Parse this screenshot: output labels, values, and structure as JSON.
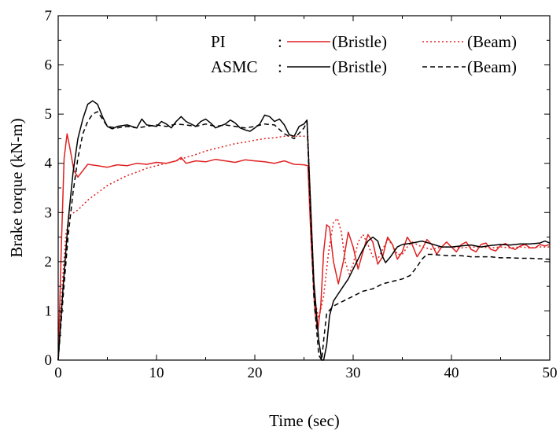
{
  "chart_data": {
    "type": "line",
    "title": "",
    "xlabel": "Time (sec)",
    "ylabel": "Brake torque (kN-m)",
    "xlim": [
      0,
      50
    ],
    "ylim": [
      0,
      7
    ],
    "xticks": [
      "0",
      "10",
      "20",
      "30",
      "40",
      "50"
    ],
    "yticks": [
      "0",
      "1",
      "2",
      "3",
      "4",
      "5",
      "6",
      "7"
    ],
    "grid": false,
    "legend": {
      "placement": "top-right",
      "rows": [
        {
          "label": "PI",
          "colon": ":",
          "entries": [
            "(Bristle)",
            "(Beam)"
          ]
        },
        {
          "label": "ASMC",
          "colon": ":",
          "entries": [
            "(Bristle)",
            "(Beam)"
          ]
        }
      ]
    },
    "series": [
      {
        "color": "#e02020",
        "dash": "solid",
        "points": [
          [
            0,
            0
          ],
          [
            0.3,
            2.2
          ],
          [
            0.6,
            4.1
          ],
          [
            0.9,
            4.6
          ],
          [
            1.2,
            4.3
          ],
          [
            1.6,
            3.85
          ],
          [
            2,
            3.72
          ],
          [
            2.5,
            3.85
          ],
          [
            3,
            3.98
          ],
          [
            4,
            3.95
          ],
          [
            5,
            3.92
          ],
          [
            6,
            3.97
          ],
          [
            7,
            3.95
          ],
          [
            8,
            4.0
          ],
          [
            9,
            3.98
          ],
          [
            10,
            4.02
          ],
          [
            11,
            4.0
          ],
          [
            12,
            4.05
          ],
          [
            12.5,
            4.12
          ],
          [
            13,
            4.0
          ],
          [
            14,
            4.05
          ],
          [
            15,
            4.03
          ],
          [
            16,
            4.08
          ],
          [
            17,
            4.05
          ],
          [
            18,
            4.02
          ],
          [
            19,
            4.07
          ],
          [
            20,
            4.05
          ],
          [
            21,
            4.03
          ],
          [
            22,
            4.0
          ],
          [
            23,
            4.05
          ],
          [
            24,
            3.98
          ],
          [
            25,
            3.97
          ],
          [
            25.4,
            3.95
          ],
          [
            25.7,
            2.5
          ],
          [
            26.1,
            1.0
          ],
          [
            26.4,
            0.6
          ],
          [
            26.7,
            1.1
          ],
          [
            27,
            2.2
          ],
          [
            27.3,
            2.75
          ],
          [
            27.6,
            2.7
          ],
          [
            28,
            2.0
          ],
          [
            28.5,
            1.55
          ],
          [
            29,
            2.0
          ],
          [
            29.5,
            2.6
          ],
          [
            30,
            2.3
          ],
          [
            30.5,
            1.85
          ],
          [
            31,
            2.2
          ],
          [
            31.5,
            2.55
          ],
          [
            32,
            2.4
          ],
          [
            32.5,
            1.95
          ],
          [
            33,
            2.1
          ],
          [
            33.5,
            2.5
          ],
          [
            34,
            2.35
          ],
          [
            34.5,
            2.05
          ],
          [
            35,
            2.2
          ],
          [
            35.5,
            2.5
          ],
          [
            36,
            2.35
          ],
          [
            36.5,
            2.1
          ],
          [
            37,
            2.25
          ],
          [
            37.5,
            2.45
          ],
          [
            38,
            2.35
          ],
          [
            38.5,
            2.15
          ],
          [
            39,
            2.3
          ],
          [
            39.5,
            2.4
          ],
          [
            40,
            2.3
          ],
          [
            40.5,
            2.2
          ],
          [
            41,
            2.35
          ],
          [
            41.5,
            2.4
          ],
          [
            42,
            2.25
          ],
          [
            42.5,
            2.2
          ],
          [
            43,
            2.35
          ],
          [
            43.5,
            2.38
          ],
          [
            44,
            2.25
          ],
          [
            44.5,
            2.22
          ],
          [
            45,
            2.33
          ],
          [
            45.5,
            2.37
          ],
          [
            46,
            2.28
          ],
          [
            46.5,
            2.25
          ],
          [
            47,
            2.32
          ],
          [
            47.5,
            2.35
          ],
          [
            48,
            2.28
          ],
          [
            48.5,
            2.28
          ],
          [
            49,
            2.35
          ],
          [
            49.5,
            2.32
          ],
          [
            50,
            2.35
          ]
        ]
      },
      {
        "color": "#e02020",
        "dash": "dotted",
        "points": [
          [
            0,
            0
          ],
          [
            0.4,
            1.5
          ],
          [
            0.8,
            2.6
          ],
          [
            1.2,
            2.95
          ],
          [
            2,
            3.05
          ],
          [
            3,
            3.25
          ],
          [
            4,
            3.4
          ],
          [
            5,
            3.55
          ],
          [
            6,
            3.65
          ],
          [
            7,
            3.75
          ],
          [
            8,
            3.82
          ],
          [
            9,
            3.9
          ],
          [
            10,
            3.95
          ],
          [
            11,
            4.0
          ],
          [
            12,
            4.05
          ],
          [
            13,
            4.12
          ],
          [
            14,
            4.18
          ],
          [
            15,
            4.25
          ],
          [
            16,
            4.3
          ],
          [
            17,
            4.35
          ],
          [
            18,
            4.4
          ],
          [
            19,
            4.43
          ],
          [
            20,
            4.47
          ],
          [
            21,
            4.5
          ],
          [
            22,
            4.52
          ],
          [
            23,
            4.55
          ],
          [
            24,
            4.55
          ],
          [
            25,
            4.55
          ],
          [
            25.4,
            4.55
          ],
          [
            25.7,
            3.0
          ],
          [
            26.1,
            1.2
          ],
          [
            26.5,
            0.85
          ],
          [
            27,
            1.3
          ],
          [
            27.5,
            2.2
          ],
          [
            28,
            2.8
          ],
          [
            28.4,
            2.88
          ],
          [
            28.8,
            2.6
          ],
          [
            29.2,
            2.0
          ],
          [
            29.6,
            1.75
          ],
          [
            30,
            1.95
          ],
          [
            30.5,
            2.4
          ],
          [
            31,
            2.55
          ],
          [
            31.5,
            2.35
          ],
          [
            32,
            2.1
          ],
          [
            32.5,
            2.05
          ],
          [
            33,
            2.25
          ],
          [
            33.5,
            2.45
          ],
          [
            34,
            2.35
          ],
          [
            34.5,
            2.15
          ],
          [
            35,
            2.15
          ],
          [
            35.5,
            2.3
          ],
          [
            36,
            2.4
          ],
          [
            37,
            2.3
          ],
          [
            38,
            2.25
          ],
          [
            39,
            2.3
          ],
          [
            40,
            2.3
          ],
          [
            41,
            2.28
          ],
          [
            42,
            2.3
          ],
          [
            43,
            2.3
          ],
          [
            44,
            2.28
          ],
          [
            45,
            2.3
          ],
          [
            46,
            2.28
          ],
          [
            47,
            2.3
          ],
          [
            48,
            2.28
          ],
          [
            49,
            2.3
          ],
          [
            50,
            2.3
          ]
        ]
      },
      {
        "color": "#000000",
        "dash": "solid",
        "points": [
          [
            0,
            0
          ],
          [
            0.5,
            1.5
          ],
          [
            1,
            2.8
          ],
          [
            1.5,
            3.8
          ],
          [
            2,
            4.5
          ],
          [
            2.5,
            4.9
          ],
          [
            3,
            5.2
          ],
          [
            3.5,
            5.27
          ],
          [
            4,
            5.2
          ],
          [
            4.5,
            4.95
          ],
          [
            5,
            4.75
          ],
          [
            5.5,
            4.7
          ],
          [
            6,
            4.75
          ],
          [
            7,
            4.78
          ],
          [
            8,
            4.72
          ],
          [
            8.5,
            4.9
          ],
          [
            9,
            4.78
          ],
          [
            10,
            4.75
          ],
          [
            10.5,
            4.85
          ],
          [
            11,
            4.8
          ],
          [
            11.5,
            4.72
          ],
          [
            12,
            4.85
          ],
          [
            12.5,
            4.95
          ],
          [
            13,
            4.85
          ],
          [
            14,
            4.75
          ],
          [
            14.5,
            4.85
          ],
          [
            15,
            4.9
          ],
          [
            15.5,
            4.82
          ],
          [
            16,
            4.72
          ],
          [
            17,
            4.8
          ],
          [
            17.5,
            4.88
          ],
          [
            18,
            4.82
          ],
          [
            18.5,
            4.72
          ],
          [
            19,
            4.68
          ],
          [
            19.5,
            4.65
          ],
          [
            20,
            4.72
          ],
          [
            20.5,
            4.8
          ],
          [
            21,
            4.98
          ],
          [
            21.5,
            4.95
          ],
          [
            22,
            4.85
          ],
          [
            22.5,
            4.9
          ],
          [
            23,
            4.78
          ],
          [
            23.5,
            4.58
          ],
          [
            24,
            4.55
          ],
          [
            24.5,
            4.75
          ],
          [
            25,
            4.8
          ],
          [
            25.3,
            4.88
          ],
          [
            25.6,
            3.5
          ],
          [
            26,
            1.6
          ],
          [
            26.5,
            0.4
          ],
          [
            26.8,
            0.0
          ],
          [
            27,
            0.0
          ],
          [
            27.3,
            0.3
          ],
          [
            27.6,
            0.9
          ],
          [
            28,
            1.2
          ],
          [
            28.5,
            1.35
          ],
          [
            29,
            1.5
          ],
          [
            29.5,
            1.65
          ],
          [
            30,
            1.85
          ],
          [
            30.5,
            2.05
          ],
          [
            31,
            2.25
          ],
          [
            31.5,
            2.42
          ],
          [
            32,
            2.5
          ],
          [
            32.5,
            2.42
          ],
          [
            33,
            2.1
          ],
          [
            33.3,
            1.98
          ],
          [
            33.8,
            2.1
          ],
          [
            34.5,
            2.3
          ],
          [
            35,
            2.35
          ],
          [
            36,
            2.38
          ],
          [
            37,
            2.42
          ],
          [
            38,
            2.36
          ],
          [
            39,
            2.3
          ],
          [
            40,
            2.3
          ],
          [
            41,
            2.32
          ],
          [
            42,
            2.34
          ],
          [
            43,
            2.3
          ],
          [
            44,
            2.33
          ],
          [
            45,
            2.35
          ],
          [
            46,
            2.34
          ],
          [
            47,
            2.36
          ],
          [
            48,
            2.36
          ],
          [
            49,
            2.38
          ],
          [
            49.5,
            2.42
          ],
          [
            50,
            2.38
          ]
        ]
      },
      {
        "color": "#000000",
        "dash": "dashed",
        "points": [
          [
            0,
            0
          ],
          [
            0.5,
            1.3
          ],
          [
            1,
            2.5
          ],
          [
            1.5,
            3.4
          ],
          [
            2,
            4.1
          ],
          [
            2.5,
            4.6
          ],
          [
            3,
            4.85
          ],
          [
            3.5,
            5.0
          ],
          [
            4,
            5.05
          ],
          [
            4.5,
            4.9
          ],
          [
            5,
            4.75
          ],
          [
            6,
            4.72
          ],
          [
            7,
            4.75
          ],
          [
            8,
            4.72
          ],
          [
            9,
            4.75
          ],
          [
            10,
            4.78
          ],
          [
            11,
            4.75
          ],
          [
            12,
            4.8
          ],
          [
            13,
            4.78
          ],
          [
            14,
            4.75
          ],
          [
            15,
            4.8
          ],
          [
            16,
            4.75
          ],
          [
            17,
            4.78
          ],
          [
            18,
            4.75
          ],
          [
            19,
            4.72
          ],
          [
            20,
            4.75
          ],
          [
            21,
            4.8
          ],
          [
            22,
            4.78
          ],
          [
            23,
            4.6
          ],
          [
            24,
            4.5
          ],
          [
            25,
            4.72
          ],
          [
            25.3,
            4.85
          ],
          [
            25.6,
            3.3
          ],
          [
            26,
            1.3
          ],
          [
            26.5,
            0.1
          ],
          [
            26.8,
            0.0
          ],
          [
            27,
            0.4
          ],
          [
            27.3,
            0.95
          ],
          [
            28,
            1.1
          ],
          [
            29,
            1.2
          ],
          [
            30,
            1.3
          ],
          [
            31,
            1.4
          ],
          [
            32,
            1.45
          ],
          [
            33,
            1.55
          ],
          [
            34,
            1.6
          ],
          [
            35,
            1.65
          ],
          [
            35.8,
            1.72
          ],
          [
            36.5,
            1.9
          ],
          [
            37,
            2.05
          ],
          [
            37.5,
            2.15
          ],
          [
            38,
            2.15
          ],
          [
            39,
            2.13
          ],
          [
            40,
            2.12
          ],
          [
            41,
            2.12
          ],
          [
            42,
            2.1
          ],
          [
            43,
            2.1
          ],
          [
            44,
            2.1
          ],
          [
            45,
            2.08
          ],
          [
            46,
            2.08
          ],
          [
            47,
            2.07
          ],
          [
            48,
            2.07
          ],
          [
            49,
            2.06
          ],
          [
            50,
            2.05
          ]
        ]
      }
    ]
  }
}
